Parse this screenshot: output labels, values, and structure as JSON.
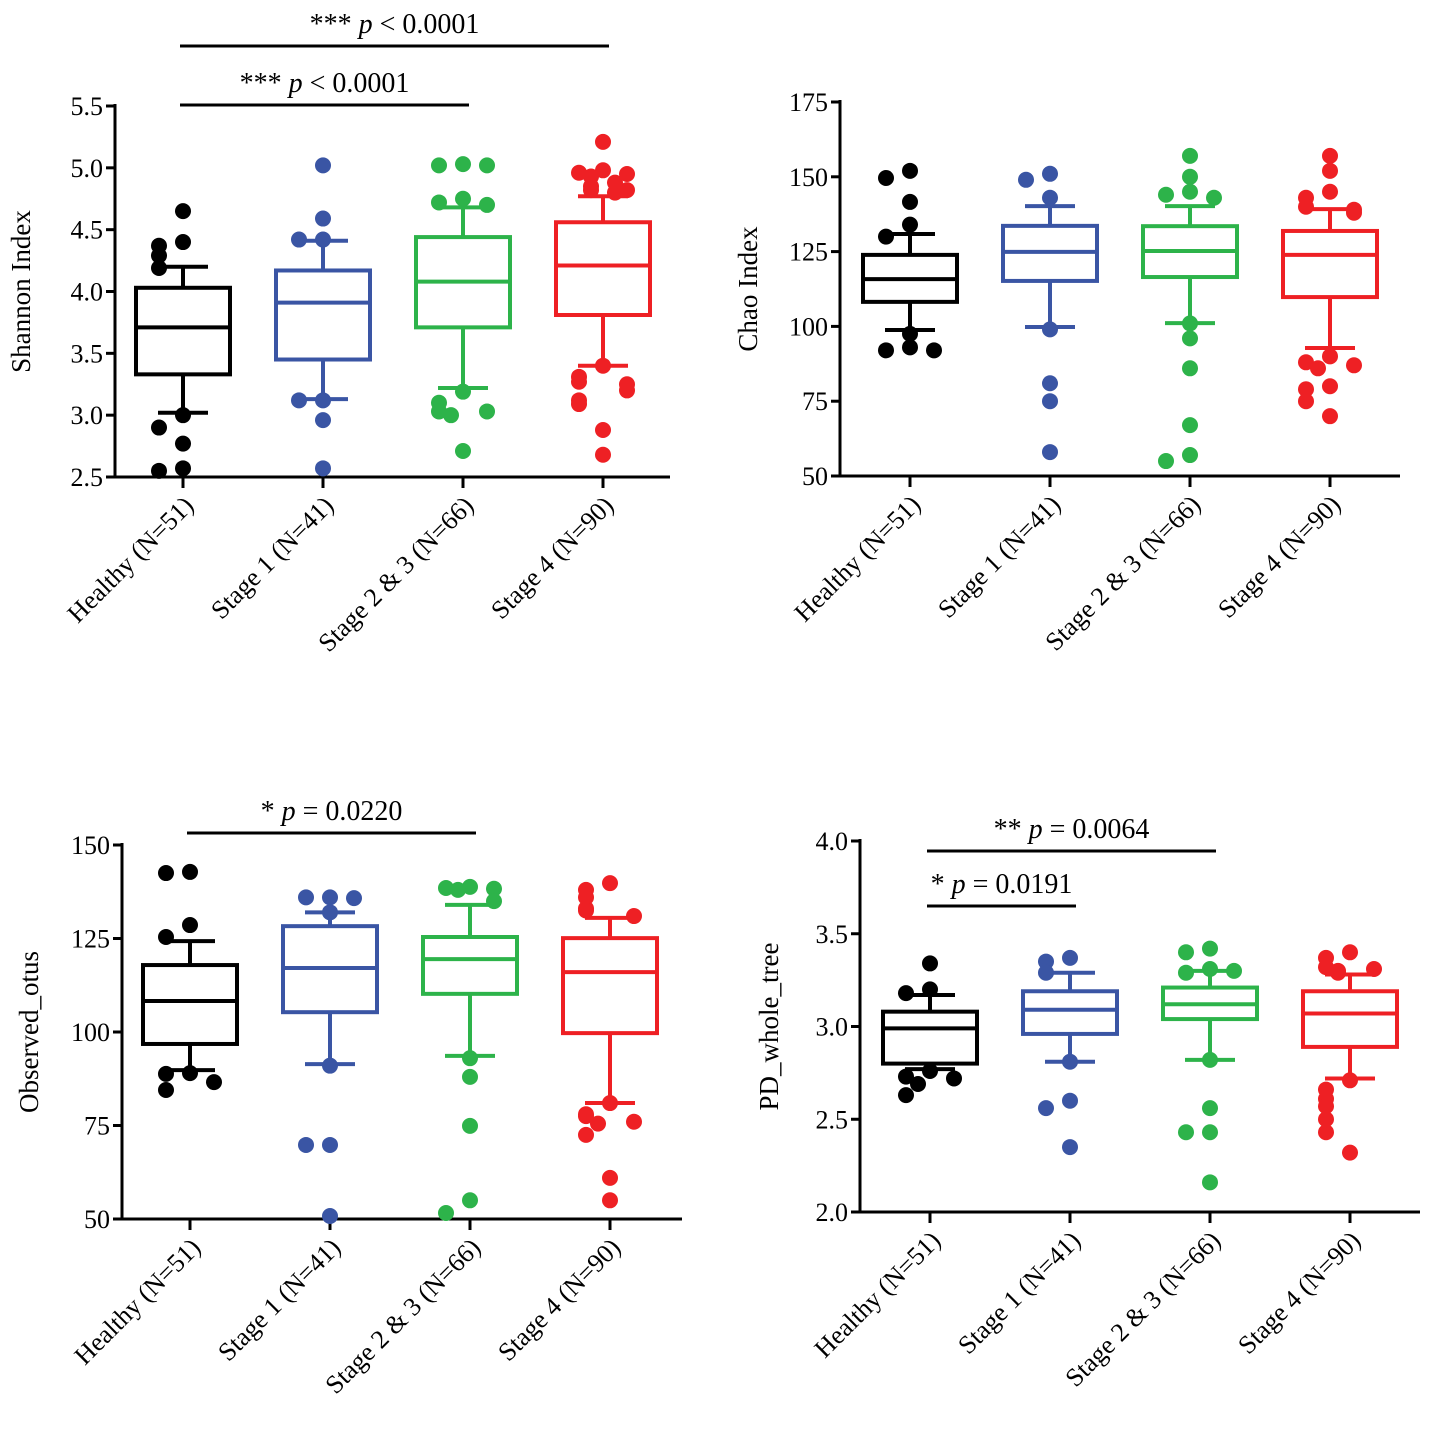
{
  "colors": [
    "#000000",
    "#3a55a4",
    "#2db34a",
    "#ee2024"
  ],
  "chart_data": [
    {
      "type": "box",
      "ylabel": "Shannon Index",
      "ylim": [
        2.5,
        5.5
      ],
      "yticks": [
        "2.5",
        "3.0",
        "3.5",
        "4.0",
        "4.5",
        "5.0",
        "5.5"
      ],
      "categories": [
        "Healthy (N=51)",
        "Stage 1 (N=41)",
        "Stage 2 & 3 (N=66)",
        "Stage 4 (N=90)"
      ],
      "boxes": [
        {
          "whisker_low": 3.02,
          "q1": 3.33,
          "median": 3.71,
          "q3": 4.03,
          "whisker_high": 4.2,
          "outliers": [
            4.65,
            4.4,
            4.37,
            4.29,
            4.19,
            3.0,
            2.9,
            2.77,
            2.57,
            2.55
          ]
        },
        {
          "whisker_low": 3.13,
          "q1": 3.45,
          "median": 3.91,
          "q3": 4.17,
          "whisker_high": 4.41,
          "outliers": [
            5.02,
            4.59,
            4.42,
            4.42,
            3.12,
            3.12,
            2.96,
            2.57
          ]
        },
        {
          "whisker_low": 3.22,
          "q1": 3.71,
          "median": 4.08,
          "q3": 4.44,
          "whisker_high": 4.68,
          "outliers": [
            5.03,
            5.02,
            5.02,
            4.75,
            4.72,
            4.7,
            3.19,
            3.1,
            3.03,
            3.03,
            3.0,
            2.71
          ]
        },
        {
          "whisker_low": 3.4,
          "q1": 3.81,
          "median": 4.21,
          "q3": 4.56,
          "whisker_high": 4.77,
          "outliers": [
            5.21,
            4.98,
            4.96,
            4.95,
            4.93,
            4.88,
            4.85,
            4.82,
            4.82,
            4.8,
            3.4,
            3.31,
            3.27,
            3.25,
            3.2,
            3.12,
            3.09,
            2.88,
            2.68
          ]
        }
      ],
      "significance": [
        {
          "pair": [
            0,
            3
          ],
          "stars": "***",
          "p": "p",
          "text": "< 0.0001"
        },
        {
          "pair": [
            0,
            2
          ],
          "stars": "***",
          "p": "p",
          "text": "< 0.0001"
        }
      ]
    },
    {
      "type": "box",
      "ylabel": "Chao Index",
      "ylim": [
        50,
        175
      ],
      "yticks": [
        "50",
        "75",
        "100",
        "125",
        "150",
        "175"
      ],
      "categories": [
        "Healthy (N=51)",
        "Stage 1 (N=41)",
        "Stage 2 & 3 (N=66)",
        "Stage 4 (N=90)"
      ],
      "boxes": [
        {
          "whisker_low": 98.8,
          "q1": 108.2,
          "median": 115.8,
          "q3": 123.9,
          "whisker_high": 130.9,
          "outliers": [
            152,
            149.6,
            141.6,
            134,
            130,
            97.5,
            93,
            92,
            92
          ]
        },
        {
          "whisker_low": 99.8,
          "q1": 115.2,
          "median": 124.9,
          "q3": 133.6,
          "whisker_high": 140.2,
          "outliers": [
            151,
            149,
            143,
            99,
            81,
            75,
            58
          ]
        },
        {
          "whisker_low": 101.1,
          "q1": 116.5,
          "median": 125.2,
          "q3": 133.5,
          "whisker_high": 140.2,
          "outliers": [
            157,
            150,
            145,
            144,
            143,
            101,
            96,
            86,
            67,
            57,
            55
          ]
        },
        {
          "whisker_low": 92.8,
          "q1": 109.8,
          "median": 123.9,
          "q3": 131.9,
          "whisker_high": 139.2,
          "outliers": [
            157,
            152,
            145,
            143,
            140,
            139,
            138,
            90,
            88,
            87,
            86,
            80,
            79,
            75,
            70
          ]
        }
      ],
      "significance": []
    },
    {
      "type": "box",
      "ylabel": "Observed_otus",
      "ylim": [
        50,
        150
      ],
      "yticks": [
        "50",
        "75",
        "100",
        "125",
        "150"
      ],
      "categories": [
        "Healthy (N=51)",
        "Stage 1 (N=41)",
        "Stage 2 & 3 (N=66)",
        "Stage 4 (N=90)"
      ],
      "boxes": [
        {
          "whisker_low": 89.8,
          "q1": 96.8,
          "median": 108.3,
          "q3": 117.9,
          "whisker_high": 124.3,
          "outliers": [
            142.8,
            142.5,
            128.6,
            125.4,
            89,
            88.8,
            86.6,
            84.5
          ]
        },
        {
          "whisker_low": 91.4,
          "q1": 105.3,
          "median": 117.1,
          "q3": 128.3,
          "whisker_high": 132,
          "outliers": [
            136,
            136,
            135.8,
            132,
            91,
            69.8,
            69.8,
            50.8
          ]
        },
        {
          "whisker_low": 93.6,
          "q1": 110.2,
          "median": 119.5,
          "q3": 125.4,
          "whisker_high": 134,
          "outliers": [
            138.8,
            138.5,
            138.3,
            138,
            135,
            93,
            88,
            74.9,
            55,
            51.6
          ]
        },
        {
          "whisker_low": 81,
          "q1": 99.7,
          "median": 116,
          "q3": 125.1,
          "whisker_high": 130.5,
          "outliers": [
            139.8,
            138,
            136,
            133,
            132.5,
            131,
            81,
            78,
            77.5,
            76,
            75.5,
            72.5,
            61,
            55
          ]
        }
      ],
      "significance": [
        {
          "pair": [
            0,
            2
          ],
          "stars": "*",
          "p": "p",
          "text": "= 0.0220"
        }
      ]
    },
    {
      "type": "box",
      "ylabel": "PD_whole_tree",
      "ylim": [
        2.0,
        4.0
      ],
      "yticks": [
        "2.0",
        "2.5",
        "3.0",
        "3.5",
        "4.0"
      ],
      "categories": [
        "Healthy (N=51)",
        "Stage 1 (N=41)",
        "Stage 2 & 3 (N=66)",
        "Stage 4 (N=90)"
      ],
      "boxes": [
        {
          "whisker_low": 2.77,
          "q1": 2.8,
          "median": 2.99,
          "q3": 3.08,
          "whisker_high": 3.17,
          "outliers": [
            3.34,
            3.2,
            3.18,
            2.76,
            2.73,
            2.72,
            2.69,
            2.63
          ]
        },
        {
          "whisker_low": 2.81,
          "q1": 2.96,
          "median": 3.09,
          "q3": 3.19,
          "whisker_high": 3.29,
          "outliers": [
            3.37,
            3.35,
            3.29,
            2.81,
            2.6,
            2.56,
            2.35
          ]
        },
        {
          "whisker_low": 2.82,
          "q1": 3.04,
          "median": 3.12,
          "q3": 3.21,
          "whisker_high": 3.3,
          "outliers": [
            3.42,
            3.4,
            3.31,
            3.29,
            3.3,
            2.82,
            2.56,
            2.43,
            2.43,
            2.16
          ]
        },
        {
          "whisker_low": 2.72,
          "q1": 2.89,
          "median": 3.07,
          "q3": 3.19,
          "whisker_high": 3.28,
          "outliers": [
            3.4,
            3.37,
            3.32,
            3.31,
            3.3,
            3.29,
            2.71,
            2.66,
            2.61,
            2.57,
            2.5,
            2.43,
            2.32
          ]
        }
      ],
      "significance": [
        {
          "pair": [
            0,
            2
          ],
          "stars": "**",
          "p": "p",
          "text": "= 0.0064"
        },
        {
          "pair": [
            0,
            1
          ],
          "stars": "*",
          "p": "p",
          "text": "= 0.0191"
        }
      ]
    }
  ]
}
